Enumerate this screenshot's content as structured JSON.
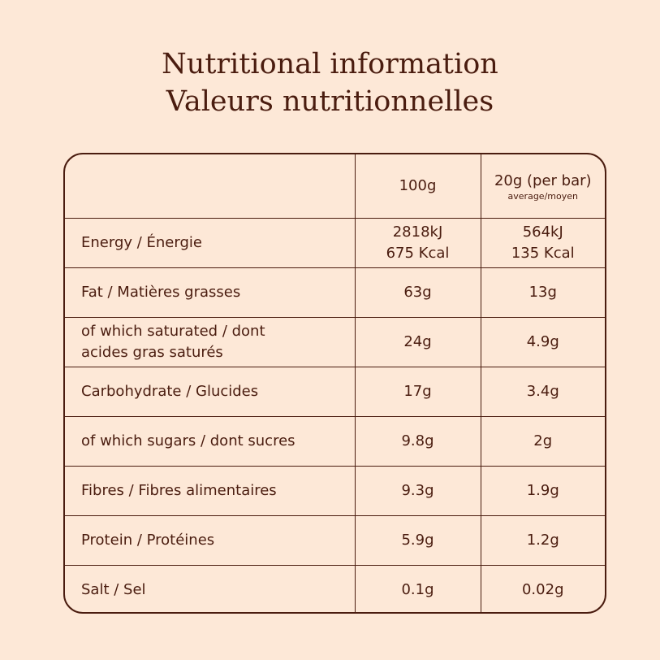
{
  "title": {
    "line1": "Nutritional information",
    "line2": "Valeurs nutritionnelles"
  },
  "table": {
    "header": {
      "col1": "",
      "col2": "100g",
      "col3": "20g (per bar)",
      "col3_sub": "average/moyen"
    },
    "rows": [
      {
        "label": "Energy / Énergie",
        "v100_line1": "2818kJ",
        "v100_line2": "675 Kcal",
        "v20_line1": "564kJ",
        "v20_line2": "135 Kcal"
      },
      {
        "label": "Fat / Matières grasses",
        "v100": "63g",
        "v20": "13g"
      },
      {
        "label_line1": "of which saturated / dont",
        "label_line2": "acides gras saturés",
        "v100": "24g",
        "v20": "4.9g"
      },
      {
        "label": "Carbohydrate / Glucides",
        "v100": "17g",
        "v20": "3.4g"
      },
      {
        "label": "of which sugars / dont sucres",
        "v100": "9.8g",
        "v20": "2g"
      },
      {
        "label": "Fibres / Fibres alimentaires",
        "v100": "9.3g",
        "v20": "1.9g"
      },
      {
        "label": "Protein / Protéines",
        "v100": "5.9g",
        "v20": "1.2g"
      },
      {
        "label": "Salt / Sel",
        "v100": "0.1g",
        "v20": "0.02g"
      }
    ]
  }
}
